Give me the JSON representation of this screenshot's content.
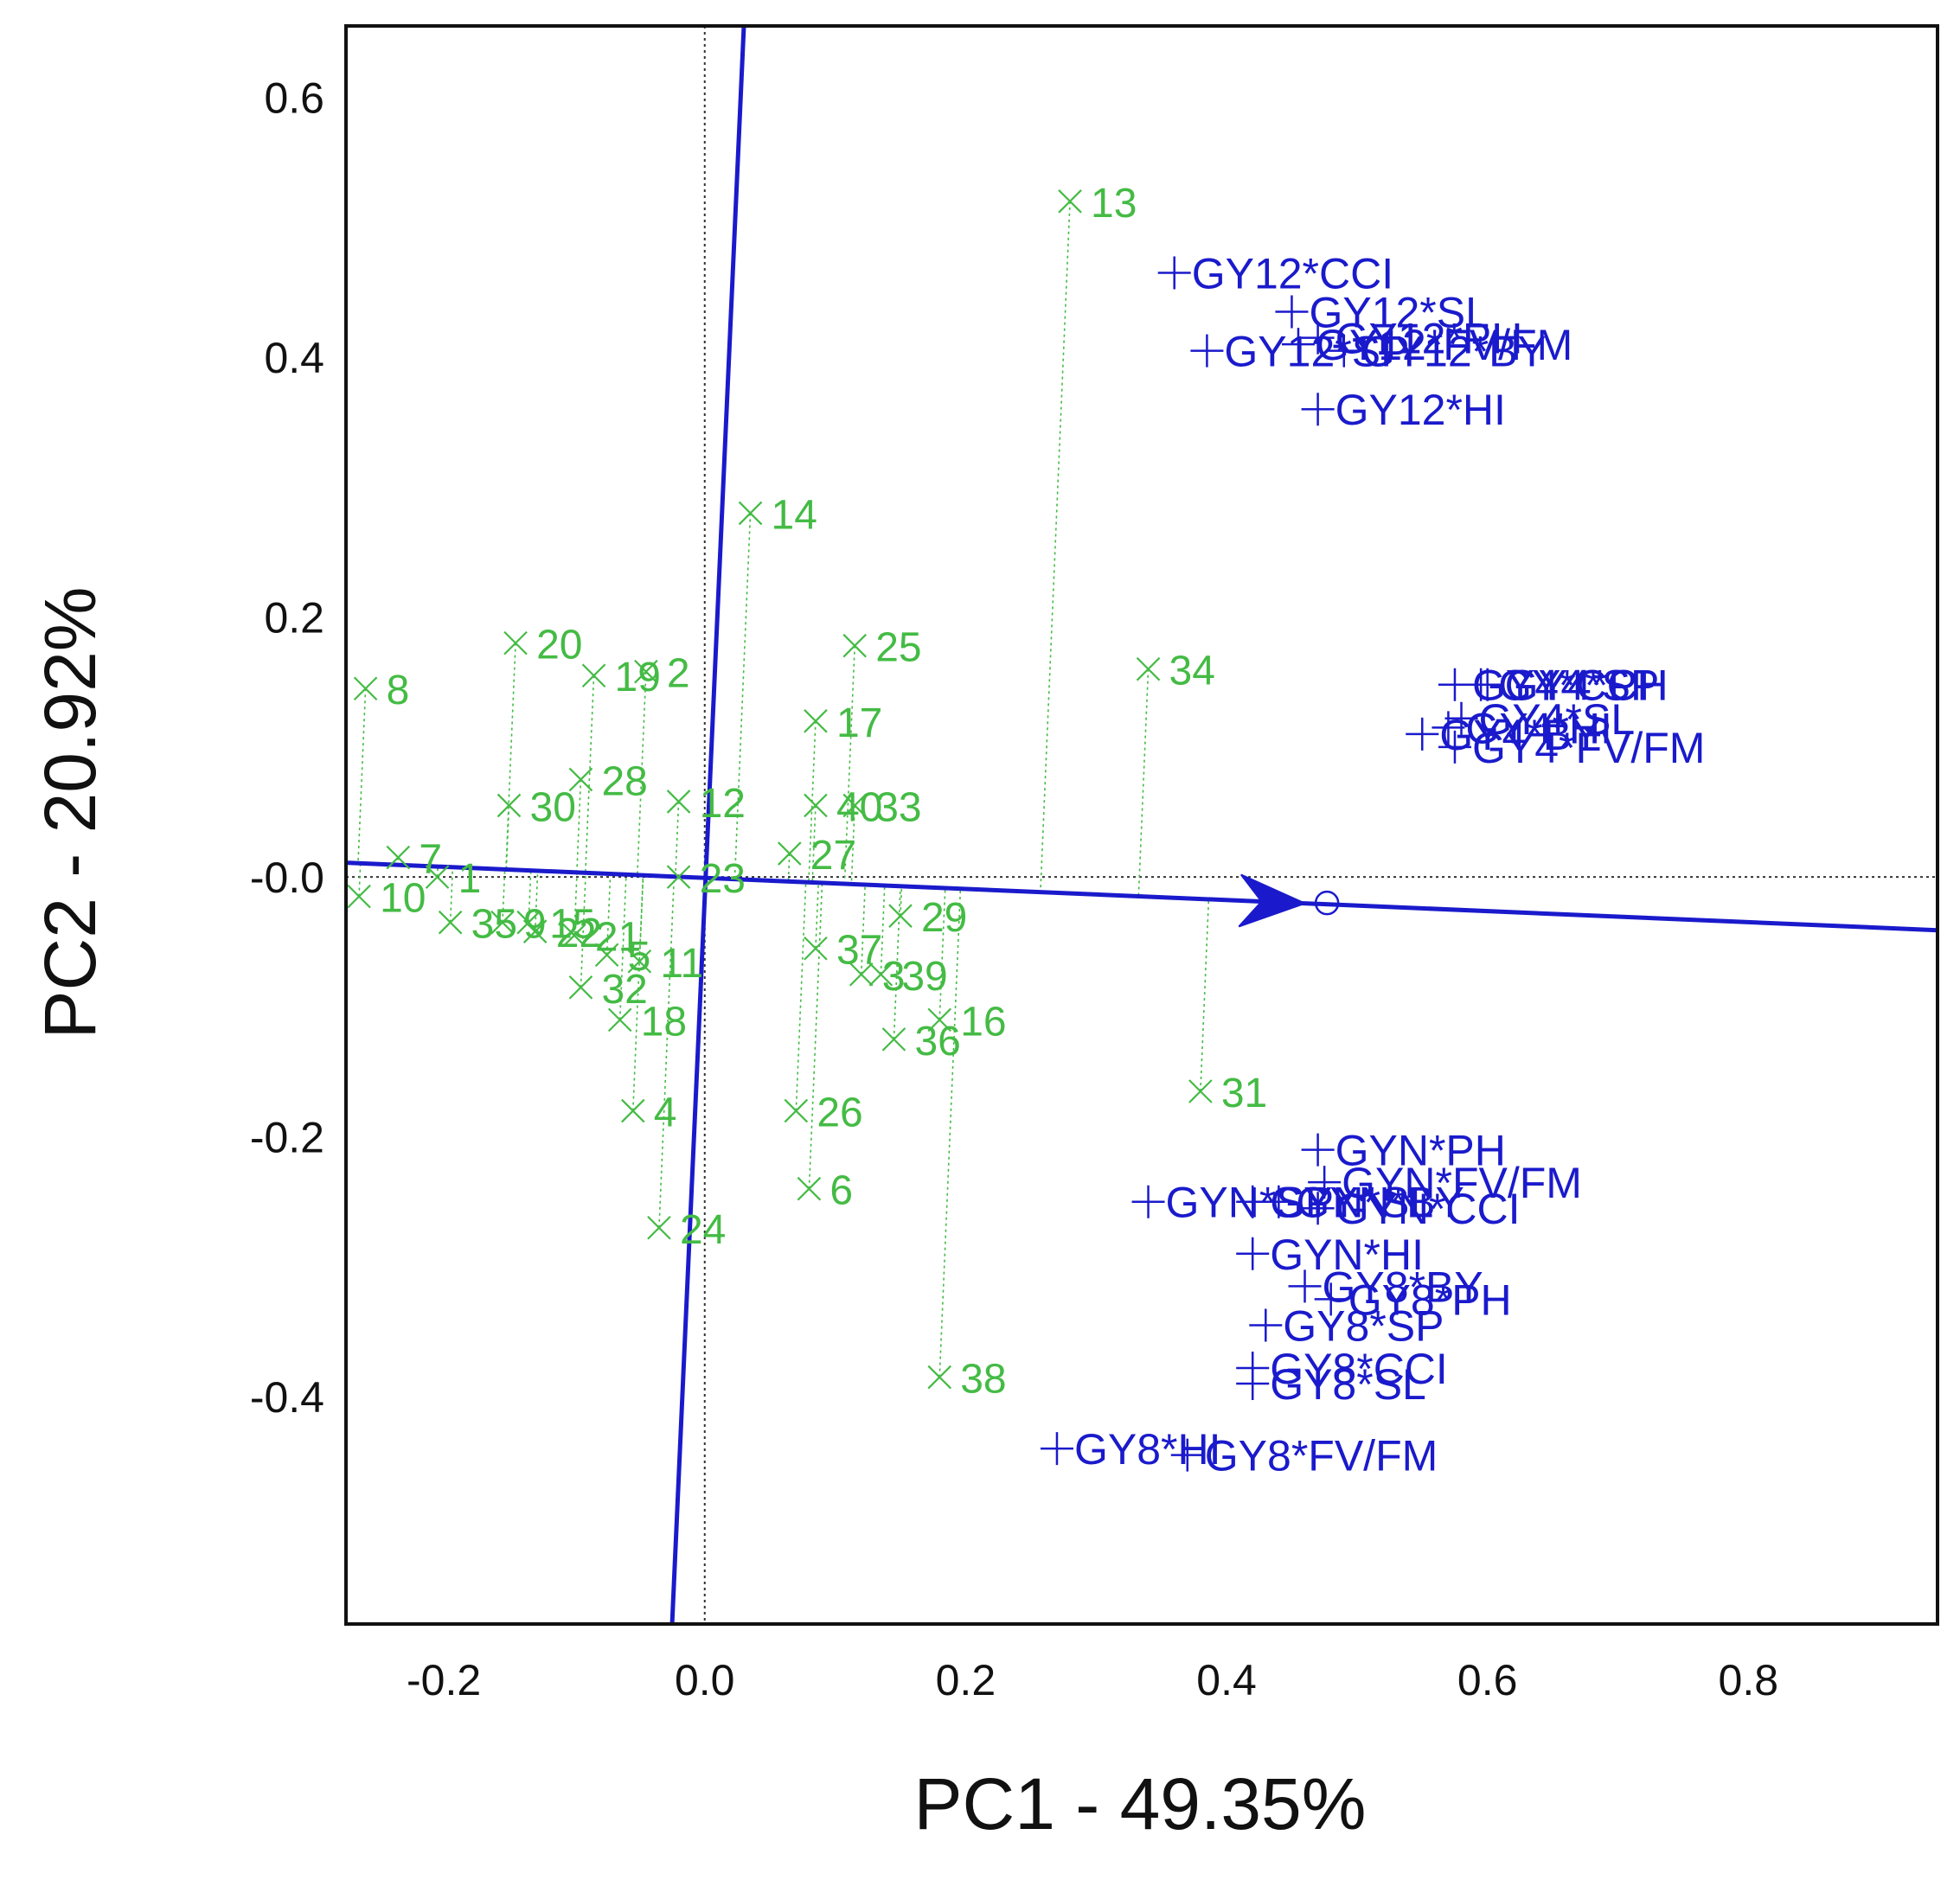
{
  "chart_data": {
    "type": "scatter",
    "title": "",
    "xlabel": "PC1 - 49.35%",
    "ylabel": "PC2 - 20.92%",
    "xlim": [
      -0.275,
      0.945
    ],
    "ylim": [
      -0.575,
      0.655
    ],
    "xticks": [
      -0.2,
      0.0,
      0.2,
      0.4,
      0.6,
      0.8
    ],
    "xtick_labels": [
      "-0.2",
      "0.0",
      "0.2",
      "0.4",
      "0.6",
      "0.8"
    ],
    "yticks": [
      0.6,
      0.4,
      0.2,
      0.0,
      -0.2,
      -0.4
    ],
    "ytick_labels": [
      "0.6",
      "0.4",
      "0.2",
      "-0.0",
      "-0.2",
      "-0.4"
    ],
    "colors": {
      "genotype": "#44bb44",
      "trait": "#1a1acc",
      "axis_line": "#1a1acc",
      "frame": "#111111"
    },
    "average_environment_axis": {
      "x1": -0.275,
      "y1": 0.011,
      "x2": 0.945,
      "y2": -0.041,
      "arrow_x": 0.46,
      "marker_x": 0.477,
      "marker_y": -0.02
    },
    "perpendicular_axis": {
      "x1": 0.03,
      "y1": 0.655,
      "x2": -0.025,
      "y2": -0.575
    },
    "genotypes": [
      {
        "label": "13",
        "x": 0.28,
        "y": 0.52
      },
      {
        "label": "14",
        "x": 0.035,
        "y": 0.28
      },
      {
        "label": "8",
        "x": -0.26,
        "y": 0.145
      },
      {
        "label": "20",
        "x": -0.145,
        "y": 0.18
      },
      {
        "label": "19",
        "x": -0.085,
        "y": 0.155
      },
      {
        "label": "2",
        "x": -0.045,
        "y": 0.158
      },
      {
        "label": "25",
        "x": 0.115,
        "y": 0.178
      },
      {
        "label": "34",
        "x": 0.34,
        "y": 0.16
      },
      {
        "label": "17",
        "x": 0.085,
        "y": 0.12
      },
      {
        "label": "28",
        "x": -0.095,
        "y": 0.075
      },
      {
        "label": "30",
        "x": -0.15,
        "y": 0.055
      },
      {
        "label": "12",
        "x": -0.02,
        "y": 0.058
      },
      {
        "label": "40",
        "x": 0.085,
        "y": 0.055
      },
      {
        "label": "33",
        "x": 0.115,
        "y": 0.055
      },
      {
        "label": "27",
        "x": 0.065,
        "y": 0.018
      },
      {
        "label": "7",
        "x": -0.235,
        "y": 0.015
      },
      {
        "label": "1",
        "x": -0.205,
        "y": 0.0
      },
      {
        "label": "23",
        "x": -0.02,
        "y": 0.0
      },
      {
        "label": "10",
        "x": -0.265,
        "y": -0.015
      },
      {
        "label": "35",
        "x": -0.195,
        "y": -0.035
      },
      {
        "label": "9",
        "x": -0.155,
        "y": -0.035
      },
      {
        "label": "15",
        "x": -0.135,
        "y": -0.035
      },
      {
        "label": "22",
        "x": -0.13,
        "y": -0.042
      },
      {
        "label": "21",
        "x": -0.1,
        "y": -0.045
      },
      {
        "label": "5",
        "x": -0.075,
        "y": -0.06
      },
      {
        "label": "29",
        "x": 0.15,
        "y": -0.03
      },
      {
        "label": "11",
        "x": -0.05,
        "y": -0.065
      },
      {
        "label": "37",
        "x": 0.085,
        "y": -0.055
      },
      {
        "label": "3",
        "x": 0.12,
        "y": -0.075
      },
      {
        "label": "39",
        "x": 0.135,
        "y": -0.075
      },
      {
        "label": "32",
        "x": -0.095,
        "y": -0.085
      },
      {
        "label": "18",
        "x": -0.065,
        "y": -0.11
      },
      {
        "label": "16",
        "x": 0.18,
        "y": -0.11
      },
      {
        "label": "36",
        "x": 0.145,
        "y": -0.125
      },
      {
        "label": "31",
        "x": 0.38,
        "y": -0.165
      },
      {
        "label": "26",
        "x": 0.07,
        "y": -0.18
      },
      {
        "label": "4",
        "x": -0.055,
        "y": -0.18
      },
      {
        "label": "6",
        "x": 0.08,
        "y": -0.24
      },
      {
        "label": "24",
        "x": -0.035,
        "y": -0.27
      },
      {
        "label": "38",
        "x": 0.18,
        "y": -0.385
      }
    ],
    "traits": [
      {
        "label": "GY12*CCI",
        "x": 0.36,
        "y": 0.465
      },
      {
        "label": "GY12*SL",
        "x": 0.45,
        "y": 0.435
      },
      {
        "label": "GY12*SP",
        "x": 0.385,
        "y": 0.405
      },
      {
        "label": "GY12*FV/FM",
        "x": 0.455,
        "y": 0.41
      },
      {
        "label": "GY12*PH",
        "x": 0.47,
        "y": 0.415
      },
      {
        "label": "GY12*BY",
        "x": 0.49,
        "y": 0.405
      },
      {
        "label": "GY12*HI",
        "x": 0.47,
        "y": 0.36
      },
      {
        "label": "GY4*CCI",
        "x": 0.575,
        "y": 0.148
      },
      {
        "label": "GY4*SP",
        "x": 0.595,
        "y": 0.148
      },
      {
        "label": "GY4*PH",
        "x": 0.6,
        "y": 0.148
      },
      {
        "label": "GY4*SL",
        "x": 0.58,
        "y": 0.122
      },
      {
        "label": "GY4*BY",
        "x": 0.55,
        "y": 0.11
      },
      {
        "label": "GY4*HI",
        "x": 0.57,
        "y": 0.115
      },
      {
        "label": "GY4*FV/FM",
        "x": 0.575,
        "y": 0.1
      },
      {
        "label": "GYN*PH",
        "x": 0.47,
        "y": -0.21
      },
      {
        "label": "GYN*FV/FM",
        "x": 0.475,
        "y": -0.235
      },
      {
        "label": "GYN*SP",
        "x": 0.34,
        "y": -0.25
      },
      {
        "label": "GYN*SL",
        "x": 0.42,
        "y": -0.25
      },
      {
        "label": "GYN*BY",
        "x": 0.44,
        "y": -0.25
      },
      {
        "label": "GYN*CCI",
        "x": 0.47,
        "y": -0.255
      },
      {
        "label": "GYN*HI",
        "x": 0.42,
        "y": -0.29
      },
      {
        "label": "GY8*BY",
        "x": 0.46,
        "y": -0.315
      },
      {
        "label": "GY8*PH",
        "x": 0.48,
        "y": -0.325
      },
      {
        "label": "GY8*SP",
        "x": 0.43,
        "y": -0.345
      },
      {
        "label": "GY8*CCI",
        "x": 0.42,
        "y": -0.378
      },
      {
        "label": "GY8*SL",
        "x": 0.42,
        "y": -0.39
      },
      {
        "label": "GY8*HI",
        "x": 0.27,
        "y": -0.44
      },
      {
        "label": "GY8*FV/FM",
        "x": 0.37,
        "y": -0.445
      }
    ]
  }
}
